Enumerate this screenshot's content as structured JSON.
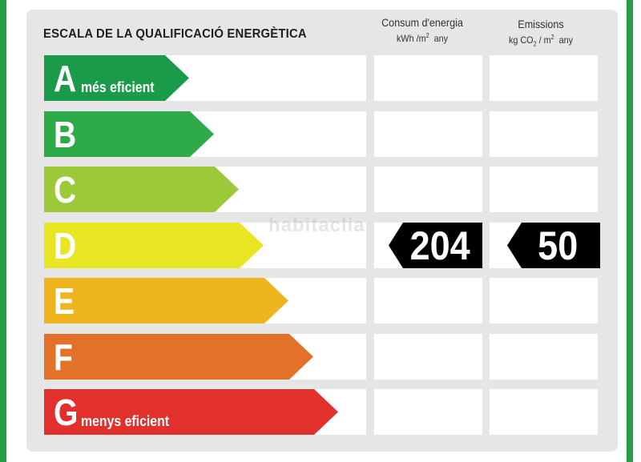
{
  "title": "ESCALA DE LA QUALIFICACIÓ ENERGÈTICA",
  "columns": {
    "consum": {
      "label": "Consum d'energia",
      "unit_prefix": "kWh /m",
      "unit_sup": "2",
      "unit_suffix": "any"
    },
    "emissions": {
      "label": "Emissions",
      "unit_prefix": "kg CO",
      "unit_sub": "2",
      "unit_mid": "/ m",
      "unit_sup": "2",
      "unit_suffix": "any"
    }
  },
  "ratings": [
    {
      "letter": "A",
      "desc": "més eficient",
      "color": "#1a9b4a"
    },
    {
      "letter": "B",
      "desc": "",
      "color": "#2eaa4a"
    },
    {
      "letter": "C",
      "desc": "",
      "color": "#9bc93a"
    },
    {
      "letter": "D",
      "desc": "",
      "color": "#e8e523"
    },
    {
      "letter": "E",
      "desc": "",
      "color": "#efb51e"
    },
    {
      "letter": "F",
      "desc": "",
      "color": "#e27229"
    },
    {
      "letter": "G",
      "desc": "menys eficient",
      "color": "#e2302d"
    }
  ],
  "current": {
    "rating": "D",
    "consum_value": "204",
    "emissions_value": "50"
  },
  "watermark": "habitaclia"
}
